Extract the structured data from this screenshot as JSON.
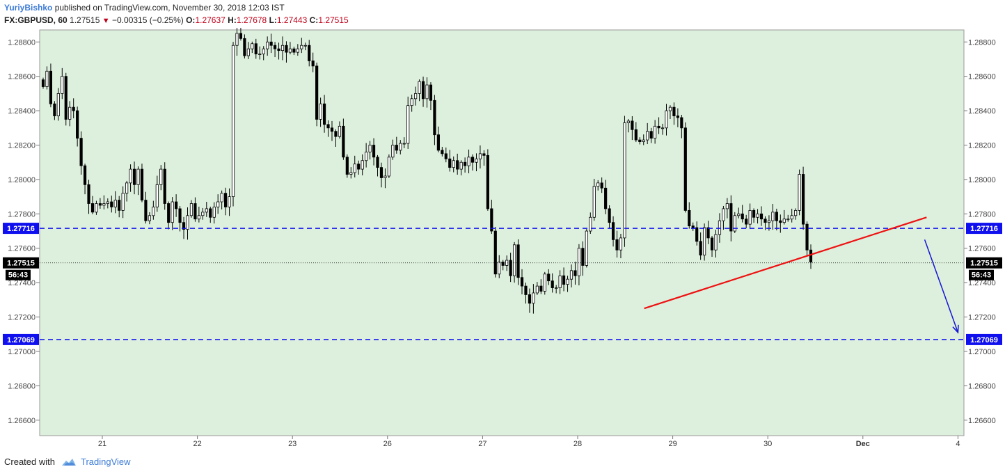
{
  "header": {
    "author": "YuriyBishko",
    "published": "published on TradingView.com, November 30, 2018 12:03 IST",
    "symbol": "FX:GBPUSD, 60",
    "last": "1.27515",
    "change": "−0.00315 (−0.25%)",
    "o_label": "O:",
    "o_value": "1.27637",
    "h_label": "H:",
    "h_value": "1.27678",
    "l_label": "L:",
    "l_value": "1.27443",
    "c_label": "C:",
    "c_value": "1.27515"
  },
  "footer": {
    "created_with": "Created with",
    "brand": "TradingView"
  },
  "colors": {
    "background": "#ddefdd",
    "level_line": "#1010ee",
    "trend_line": "#ee1111",
    "arrow": "#1515d6",
    "candle_up": "#ffffff",
    "candle_down": "#000000"
  },
  "chart_data": {
    "type": "candlestick",
    "instrument": "FX:GBPUSD",
    "interval": "60",
    "ylim": [
      1.2651,
      1.2887
    ],
    "y_ticks": [
      "1.28800",
      "1.28600",
      "1.28400",
      "1.28200",
      "1.28000",
      "1.27800",
      "1.27600",
      "1.27400",
      "1.27200",
      "1.27000",
      "1.26800",
      "1.26600"
    ],
    "x_ticks": [
      "21",
      "22",
      "23",
      "26",
      "27",
      "28",
      "29",
      "30",
      "Dec",
      "4"
    ],
    "x_ticks_bold": [
      "Dec"
    ],
    "levels": [
      {
        "value": 1.27716,
        "label": "1.27716"
      },
      {
        "value": 1.27069,
        "label": "1.27069"
      }
    ],
    "last_price": {
      "value": 1.27515,
      "label": "1.27515",
      "countdown": "56:43"
    },
    "trendline": {
      "from": {
        "x": 6.7,
        "y": 1.2725
      },
      "to": {
        "x": 9.67,
        "y": 1.2778
      }
    },
    "arrow": {
      "from": {
        "x": 9.65,
        "y": 1.2765
      },
      "to": {
        "x": 10.0,
        "y": 1.2711
      }
    },
    "closes": [
      1.2854,
      1.2863,
      1.2844,
      1.2837,
      1.285,
      1.286,
      1.2835,
      1.2842,
      1.284,
      1.2824,
      1.2808,
      1.2797,
      1.2786,
      1.2781,
      1.2786,
      1.2785,
      1.2786,
      1.2787,
      1.2784,
      1.2788,
      1.2782,
      1.2792,
      1.2798,
      1.2806,
      1.2797,
      1.2806,
      1.2788,
      1.2776,
      1.2779,
      1.2784,
      1.2797,
      1.2806,
      1.2786,
      1.2775,
      1.2787,
      1.2783,
      1.2775,
      1.2771,
      1.2779,
      1.2786,
      1.2777,
      1.2779,
      1.2781,
      1.2783,
      1.2778,
      1.2784,
      1.2787,
      1.2792,
      1.2784,
      1.279,
      1.2878,
      1.2885,
      1.2882,
      1.2872,
      1.2876,
      1.2879,
      1.2873,
      1.2873,
      1.2876,
      1.288,
      1.2878,
      1.2876,
      1.2875,
      1.2878,
      1.2874,
      1.2876,
      1.2874,
      1.2876,
      1.2878,
      1.2878,
      1.2869,
      1.2866,
      1.2835,
      1.2844,
      1.2832,
      1.283,
      1.2828,
      1.2825,
      1.2831,
      1.2813,
      1.2803,
      1.2804,
      1.2809,
      1.2806,
      1.2811,
      1.2816,
      1.282,
      1.2813,
      1.2807,
      1.2801,
      1.2802,
      1.2813,
      1.282,
      1.2817,
      1.2821,
      1.2821,
      1.2843,
      1.2847,
      1.285,
      1.2857,
      1.2847,
      1.2855,
      1.2846,
      1.2826,
      1.2817,
      1.2815,
      1.2812,
      1.2807,
      1.2811,
      1.2806,
      1.281,
      1.2808,
      1.2813,
      1.281,
      1.2812,
      1.2815,
      1.2814,
      1.2783,
      1.277,
      1.2745,
      1.2752,
      1.275,
      1.2753,
      1.2744,
      1.2762,
      1.2743,
      1.2738,
      1.2733,
      1.2728,
      1.2734,
      1.2738,
      1.2735,
      1.2745,
      1.2741,
      1.2737,
      1.2737,
      1.2744,
      1.2739,
      1.2742,
      1.2747,
      1.2744,
      1.276,
      1.275,
      1.277,
      1.2778,
      1.2796,
      1.2798,
      1.2795,
      1.2783,
      1.2775,
      1.2765,
      1.2759,
      1.2766,
      1.2833,
      1.2834,
      1.2829,
      1.2823,
      1.2822,
      1.2823,
      1.2828,
      1.2824,
      1.2831,
      1.283,
      1.283,
      1.284,
      1.2842,
      1.2837,
      1.2836,
      1.283,
      1.2782,
      1.2773,
      1.2772,
      1.2764,
      1.2756,
      1.2772,
      1.2766,
      1.2759,
      1.2768,
      1.2776,
      1.2783,
      1.2786,
      1.277,
      1.2779,
      1.278,
      1.2777,
      1.2774,
      1.2782,
      1.2778,
      1.278,
      1.2777,
      1.2775,
      1.2776,
      1.2781,
      1.2776,
      1.2775,
      1.2777,
      1.2777,
      1.2779,
      1.2782,
      1.2803,
      1.2774,
      1.2759,
      1.2752
    ]
  }
}
